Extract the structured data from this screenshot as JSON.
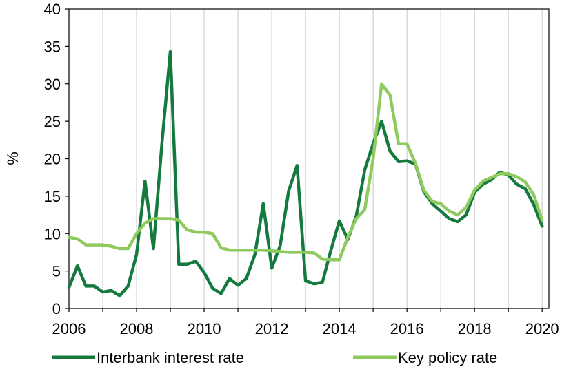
{
  "chart_data": {
    "type": "line",
    "title": "",
    "xlabel": "",
    "ylabel": "%",
    "xlim": [
      2006,
      2020.2
    ],
    "ylim": [
      0,
      40
    ],
    "xticks": [
      2006,
      2008,
      2010,
      2012,
      2014,
      2016,
      2018,
      2020
    ],
    "yticks": [
      0,
      5,
      10,
      15,
      20,
      25,
      30,
      35,
      40
    ],
    "grid": "vertical",
    "legend": "bottom",
    "series": [
      {
        "name": "Interbank interest rate",
        "color": "#147a3e",
        "x": [
          2006.0,
          2006.25,
          2006.5,
          2006.75,
          2007.0,
          2007.25,
          2007.5,
          2007.75,
          2008.0,
          2008.25,
          2008.5,
          2008.75,
          2009.0,
          2009.25,
          2009.5,
          2009.75,
          2010.0,
          2010.25,
          2010.5,
          2010.75,
          2011.0,
          2011.25,
          2011.5,
          2011.75,
          2012.0,
          2012.25,
          2012.5,
          2012.75,
          2013.0,
          2013.25,
          2013.5,
          2013.75,
          2014.0,
          2014.25,
          2014.5,
          2014.75,
          2015.0,
          2015.25,
          2015.5,
          2015.75,
          2016.0,
          2016.25,
          2016.5,
          2016.75,
          2017.0,
          2017.25,
          2017.5,
          2017.75,
          2018.0,
          2018.25,
          2018.5,
          2018.75,
          2019.0,
          2019.25,
          2019.5,
          2019.75,
          2020.0
        ],
        "values": [
          2.8,
          5.7,
          3.0,
          3.0,
          2.2,
          2.4,
          1.7,
          3.0,
          7.2,
          17.0,
          8.0,
          22.0,
          34.3,
          5.9,
          5.9,
          6.3,
          4.8,
          2.7,
          2.0,
          4.0,
          3.1,
          4.0,
          7.2,
          14.0,
          5.4,
          8.4,
          15.7,
          19.1,
          3.7,
          3.3,
          3.5,
          7.8,
          11.7,
          9.2,
          12.3,
          18.5,
          22.0,
          25.0,
          21.0,
          19.6,
          19.7,
          19.3,
          15.6,
          14.0,
          13.0,
          12.0,
          11.6,
          12.5,
          15.5,
          16.6,
          17.2,
          18.2,
          17.8,
          16.6,
          16.0,
          13.9,
          11.0
        ]
      },
      {
        "name": "Key policy rate",
        "color": "#8fca5e",
        "x": [
          2006.0,
          2006.25,
          2006.5,
          2006.75,
          2007.0,
          2007.25,
          2007.5,
          2007.75,
          2008.0,
          2008.25,
          2008.5,
          2008.75,
          2009.0,
          2009.25,
          2009.5,
          2009.75,
          2010.0,
          2010.25,
          2010.5,
          2010.75,
          2011.0,
          2011.25,
          2011.5,
          2011.75,
          2012.0,
          2012.25,
          2012.5,
          2012.75,
          2013.0,
          2013.25,
          2013.5,
          2013.75,
          2014.0,
          2014.25,
          2014.5,
          2014.75,
          2015.0,
          2015.25,
          2015.5,
          2015.75,
          2016.0,
          2016.25,
          2016.5,
          2016.75,
          2017.0,
          2017.25,
          2017.5,
          2017.75,
          2018.0,
          2018.25,
          2018.5,
          2018.75,
          2019.0,
          2019.25,
          2019.5,
          2019.75,
          2020.0
        ],
        "values": [
          9.5,
          9.3,
          8.5,
          8.5,
          8.5,
          8.3,
          8.0,
          8.0,
          10.0,
          11.4,
          12.0,
          12.0,
          12.0,
          11.8,
          10.5,
          10.2,
          10.2,
          10.0,
          8.1,
          7.8,
          7.8,
          7.8,
          7.8,
          7.8,
          7.7,
          7.6,
          7.5,
          7.5,
          7.5,
          7.4,
          6.6,
          6.5,
          6.5,
          9.5,
          12.0,
          13.2,
          20.0,
          30.0,
          28.5,
          22.0,
          22.0,
          19.4,
          15.8,
          14.3,
          14.0,
          13.0,
          12.5,
          13.5,
          15.8,
          17.0,
          17.5,
          18.0,
          18.0,
          17.6,
          16.9,
          15.2,
          11.8
        ]
      }
    ]
  }
}
